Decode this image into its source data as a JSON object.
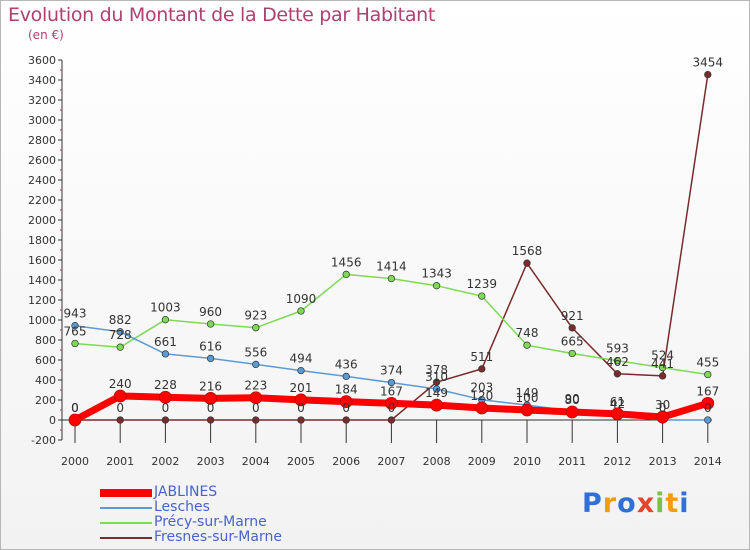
{
  "title": "Evolution du Montant de la Dette par Habitant",
  "subtitle": "(en €)",
  "logo": "Proxiti",
  "chart_data": {
    "type": "line",
    "title": "Evolution du Montant de la Dette par Habitant",
    "subtitle": "(en €)",
    "categories": [
      "2000",
      "2001",
      "2002",
      "2003",
      "2004",
      "2005",
      "2006",
      "2007",
      "2008",
      "2009",
      "2010",
      "2011",
      "2012",
      "2013",
      "2014"
    ],
    "ylim": [
      -200,
      3600
    ],
    "yticks": [
      -200,
      0,
      200,
      400,
      600,
      800,
      1000,
      1200,
      1400,
      1600,
      1800,
      2000,
      2200,
      2400,
      2600,
      2800,
      3000,
      3200,
      3400,
      3600
    ],
    "grid": false,
    "legend_position": "bottom-left",
    "series": [
      {
        "name": "JABLINES",
        "color": "#ff0000",
        "values": [
          0,
          240,
          228,
          216,
          223,
          201,
          184,
          167,
          149,
          120,
          100,
          80,
          61,
          30,
          167
        ]
      },
      {
        "name": "Lesches",
        "color": "#5b9bd5",
        "values": [
          943,
          882,
          661,
          616,
          556,
          494,
          436,
          374,
          310,
          203,
          149,
          90,
          42,
          0,
          0
        ]
      },
      {
        "name": "Précy-sur-Marne",
        "color": "#7ed957",
        "values": [
          765,
          728,
          1003,
          960,
          923,
          1090,
          1456,
          1414,
          1343,
          1239,
          748,
          665,
          593,
          524,
          455
        ]
      },
      {
        "name": "Fresnes-sur-Marne",
        "color": "#7a2b2b",
        "values": [
          0,
          0,
          0,
          0,
          0,
          0,
          0,
          0,
          378,
          511,
          1568,
          921,
          462,
          441,
          3454
        ]
      }
    ]
  }
}
